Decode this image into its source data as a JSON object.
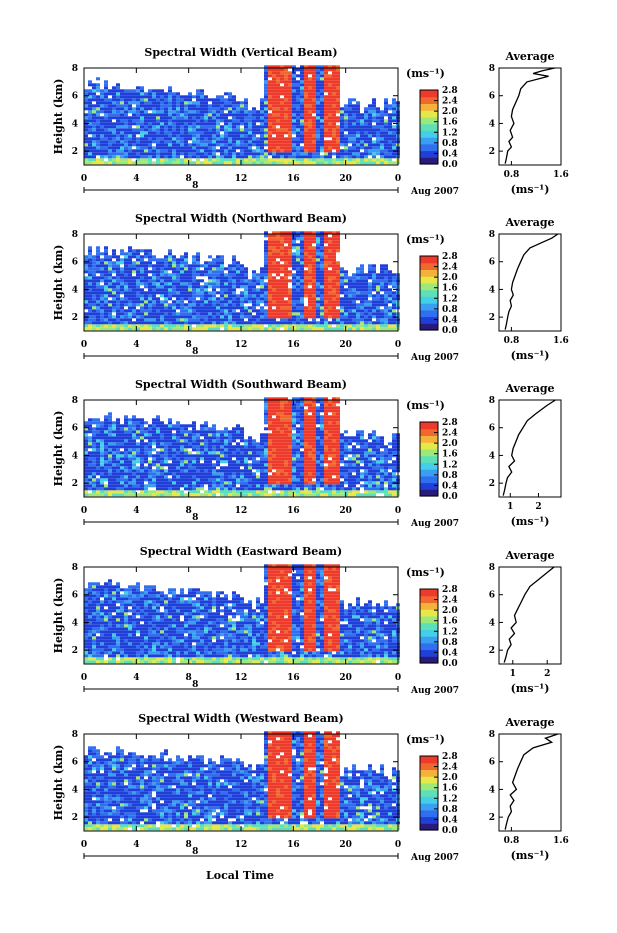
{
  "colors": {
    "scale": [
      "#2a1a7a",
      "#1f3fd8",
      "#2f6ff0",
      "#3a9ff2",
      "#44cfe8",
      "#5de0b8",
      "#9ee87a",
      "#e6e84a",
      "#f5b23a",
      "#f0682e",
      "#ee3a2a"
    ],
    "background": "#ffffff"
  },
  "figure": {
    "x_axis_label": "Local Time",
    "date_label": "Aug 2007",
    "day_label": "8",
    "colorbar_unit": "(ms⁻¹)",
    "avg_unit": "(ms⁻¹)",
    "avg_title": "Average"
  },
  "chart_data": [
    {
      "type": "heatmap",
      "title": "Spectral Width (Vertical Beam)",
      "ylabel": "Height (km)",
      "xlabel": "Local Time",
      "x_ticks": [
        "0",
        "4",
        "8",
        "12",
        "16",
        "20",
        "0"
      ],
      "y_ticks": [
        "2",
        "4",
        "6",
        "8"
      ],
      "xlim": [
        0,
        24
      ],
      "ylim": [
        1,
        8
      ],
      "colorbar": {
        "ticks": [
          "0.0",
          "0.4",
          "0.8",
          "1.2",
          "1.6",
          "2.0",
          "2.4",
          "2.8"
        ],
        "range": [
          0,
          2.8
        ]
      },
      "average": {
        "title": "Average",
        "xlabel": "(ms⁻¹)",
        "x_ticks": [
          "0.8",
          "1.6"
        ],
        "xlim": [
          0.6,
          1.6
        ],
        "y_ticks": [
          "2",
          "4",
          "6",
          "8"
        ],
        "profile": [
          [
            1.5,
            8.0
          ],
          [
            1.3,
            7.8
          ],
          [
            1.15,
            7.6
          ],
          [
            1.4,
            7.4
          ],
          [
            1.05,
            7.0
          ],
          [
            0.95,
            6.5
          ],
          [
            0.92,
            6.0
          ],
          [
            0.87,
            5.5
          ],
          [
            0.82,
            5.0
          ],
          [
            0.8,
            4.5
          ],
          [
            0.84,
            4.0
          ],
          [
            0.78,
            3.5
          ],
          [
            0.82,
            3.0
          ],
          [
            0.76,
            2.7
          ],
          [
            0.8,
            2.3
          ],
          [
            0.74,
            2.0
          ],
          [
            0.72,
            1.5
          ],
          [
            0.7,
            1.1
          ]
        ]
      }
    },
    {
      "type": "heatmap",
      "title": "Spectral Width (Northward Beam)",
      "ylabel": "Height (km)",
      "xlabel": "Local Time",
      "x_ticks": [
        "0",
        "4",
        "8",
        "12",
        "16",
        "20",
        "0"
      ],
      "y_ticks": [
        "2",
        "4",
        "6",
        "8"
      ],
      "xlim": [
        0,
        24
      ],
      "ylim": [
        1,
        8
      ],
      "colorbar": {
        "ticks": [
          "0.0",
          "0.4",
          "0.8",
          "1.2",
          "1.6",
          "2.0",
          "2.4",
          "2.8"
        ],
        "range": [
          0,
          2.8
        ]
      },
      "average": {
        "title": "Average",
        "xlabel": "(ms⁻¹)",
        "x_ticks": [
          "0.8",
          "1.6"
        ],
        "xlim": [
          0.6,
          1.6
        ],
        "y_ticks": [
          "2",
          "4",
          "6",
          "8"
        ],
        "profile": [
          [
            1.55,
            8.0
          ],
          [
            1.45,
            7.7
          ],
          [
            1.3,
            7.4
          ],
          [
            1.1,
            7.0
          ],
          [
            1.0,
            6.5
          ],
          [
            0.95,
            6.0
          ],
          [
            0.9,
            5.5
          ],
          [
            0.86,
            5.0
          ],
          [
            0.82,
            4.5
          ],
          [
            0.8,
            4.0
          ],
          [
            0.83,
            3.6
          ],
          [
            0.78,
            3.2
          ],
          [
            0.8,
            2.8
          ],
          [
            0.76,
            2.4
          ],
          [
            0.74,
            2.0
          ],
          [
            0.72,
            1.5
          ],
          [
            0.7,
            1.1
          ]
        ]
      }
    },
    {
      "type": "heatmap",
      "title": "Spectral Width (Southward Beam)",
      "ylabel": "Height (km)",
      "xlabel": "Local Time",
      "x_ticks": [
        "0",
        "4",
        "8",
        "12",
        "16",
        "20",
        "0"
      ],
      "y_ticks": [
        "2",
        "4",
        "6",
        "8"
      ],
      "xlim": [
        0,
        24
      ],
      "ylim": [
        1,
        8
      ],
      "colorbar": {
        "ticks": [
          "0.0",
          "0.4",
          "0.8",
          "1.2",
          "1.6",
          "2.0",
          "2.4",
          "2.8"
        ],
        "range": [
          0,
          2.8
        ]
      },
      "average": {
        "title": "Average",
        "xlabel": "(ms⁻¹)",
        "x_ticks": [
          "1",
          "2"
        ],
        "xlim": [
          0.6,
          2.8
        ],
        "y_ticks": [
          "2",
          "4",
          "6",
          "8"
        ],
        "profile": [
          [
            2.6,
            8.0
          ],
          [
            2.3,
            7.6
          ],
          [
            1.9,
            7.0
          ],
          [
            1.6,
            6.5
          ],
          [
            1.45,
            6.0
          ],
          [
            1.3,
            5.5
          ],
          [
            1.2,
            5.0
          ],
          [
            1.1,
            4.5
          ],
          [
            1.05,
            4.0
          ],
          [
            1.15,
            3.6
          ],
          [
            0.95,
            3.2
          ],
          [
            1.05,
            2.8
          ],
          [
            0.9,
            2.4
          ],
          [
            0.85,
            2.0
          ],
          [
            0.8,
            1.5
          ],
          [
            0.75,
            1.1
          ]
        ]
      }
    },
    {
      "type": "heatmap",
      "title": "Spectral Width (Eastward Beam)",
      "ylabel": "Height (km)",
      "xlabel": "Local Time",
      "x_ticks": [
        "0",
        "4",
        "8",
        "12",
        "16",
        "20",
        "0"
      ],
      "y_ticks": [
        "2",
        "4",
        "6",
        "8"
      ],
      "xlim": [
        0,
        24
      ],
      "ylim": [
        1,
        8
      ],
      "colorbar": {
        "ticks": [
          "0.0",
          "0.4",
          "0.8",
          "1.2",
          "1.6",
          "2.0",
          "2.4",
          "2.8"
        ],
        "range": [
          0,
          2.8
        ]
      },
      "average": {
        "title": "Average",
        "xlabel": "(ms⁻¹)",
        "x_ticks": [
          "1",
          "2"
        ],
        "xlim": [
          0.6,
          2.4
        ],
        "y_ticks": [
          "2",
          "4",
          "6",
          "8"
        ],
        "profile": [
          [
            2.2,
            8.0
          ],
          [
            2.0,
            7.6
          ],
          [
            1.8,
            7.2
          ],
          [
            1.5,
            6.6
          ],
          [
            1.35,
            6.0
          ],
          [
            1.25,
            5.5
          ],
          [
            1.15,
            5.0
          ],
          [
            1.05,
            4.5
          ],
          [
            1.1,
            4.0
          ],
          [
            0.95,
            3.6
          ],
          [
            1.05,
            3.2
          ],
          [
            0.9,
            2.8
          ],
          [
            0.95,
            2.4
          ],
          [
            0.85,
            2.0
          ],
          [
            0.8,
            1.5
          ],
          [
            0.75,
            1.1
          ]
        ]
      }
    },
    {
      "type": "heatmap",
      "title": "Spectral Width (Westward Beam)",
      "ylabel": "Height (km)",
      "xlabel": "Local Time",
      "x_ticks": [
        "0",
        "4",
        "8",
        "12",
        "16",
        "20",
        "0"
      ],
      "y_ticks": [
        "2",
        "4",
        "6",
        "8"
      ],
      "xlim": [
        0,
        24
      ],
      "ylim": [
        1,
        8
      ],
      "colorbar": {
        "ticks": [
          "0.0",
          "0.4",
          "0.8",
          "1.2",
          "1.6",
          "2.0",
          "2.4",
          "2.8"
        ],
        "range": [
          0,
          2.8
        ]
      },
      "average": {
        "title": "Average",
        "xlabel": "(ms⁻¹)",
        "x_ticks": [
          "0.8",
          "1.6"
        ],
        "xlim": [
          0.6,
          1.6
        ],
        "y_ticks": [
          "2",
          "4",
          "6",
          "8"
        ],
        "profile": [
          [
            1.55,
            8.0
          ],
          [
            1.35,
            7.7
          ],
          [
            1.45,
            7.4
          ],
          [
            1.15,
            7.0
          ],
          [
            1.0,
            6.5
          ],
          [
            0.95,
            6.0
          ],
          [
            0.9,
            5.5
          ],
          [
            0.86,
            5.0
          ],
          [
            0.82,
            4.5
          ],
          [
            0.88,
            4.0
          ],
          [
            0.78,
            3.6
          ],
          [
            0.84,
            3.2
          ],
          [
            0.78,
            2.8
          ],
          [
            0.8,
            2.4
          ],
          [
            0.75,
            2.0
          ],
          [
            0.72,
            1.5
          ],
          [
            0.7,
            1.1
          ]
        ]
      }
    }
  ]
}
